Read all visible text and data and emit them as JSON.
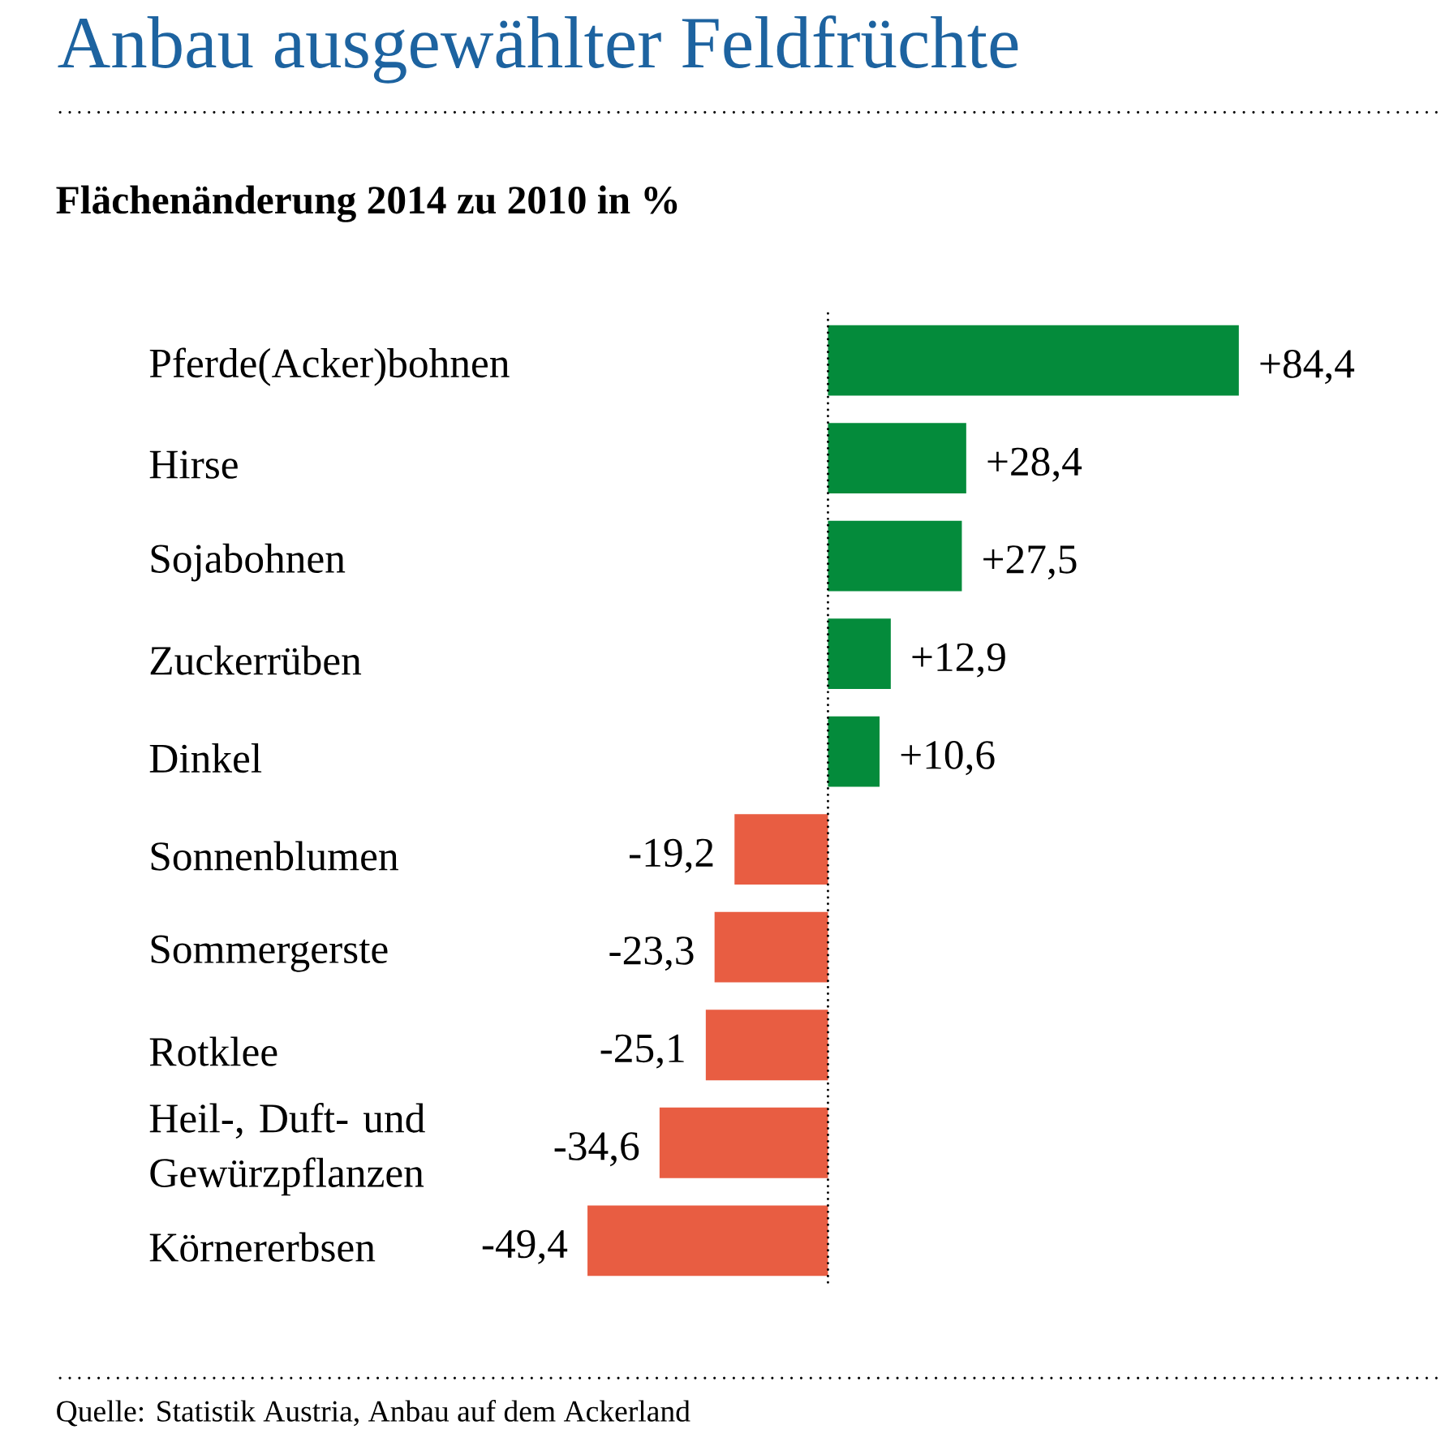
{
  "chart_data": {
    "type": "bar",
    "orientation": "horizontal",
    "title": "Anbau ausgewählter Feldfrüchte",
    "subtitle": "Flächenänderung 2014 zu 2010 in %",
    "categories": [
      "Pferde(Acker)bohnen",
      "Hirse",
      "Sojabohnen",
      "Zuckerrüben",
      "Dinkel",
      "Sonnenblumen",
      "Sommergerste",
      "Rotklee",
      "Heil-, Duft- und Gewürzpflanzen",
      "Körnererbsen"
    ],
    "values": [
      84.4,
      28.4,
      27.5,
      12.9,
      10.6,
      -19.2,
      -23.3,
      -25.1,
      -34.6,
      -49.4
    ],
    "colors": [
      "#048b3b",
      "#048b3b",
      "#048b3b",
      "#048b3b",
      "#048b3b",
      "#e85d42",
      "#e85d42",
      "#e85d42",
      "#e85d42",
      "#e85d42"
    ],
    "value_labels": [
      "+84,4",
      "+28,4",
      "+27,5",
      "+12,9",
      "+10,6",
      "-19,2",
      "-23,3",
      "-25,1",
      "-34,6",
      "-49,4"
    ],
    "ref_lines": [
      {
        "axis": "x",
        "value": 0,
        "color": "#000000",
        "line_style": "dotted"
      }
    ],
    "annotations": [
      "Quelle: Statistik Austria, Anbau auf dem Ackerland"
    ]
  }
}
